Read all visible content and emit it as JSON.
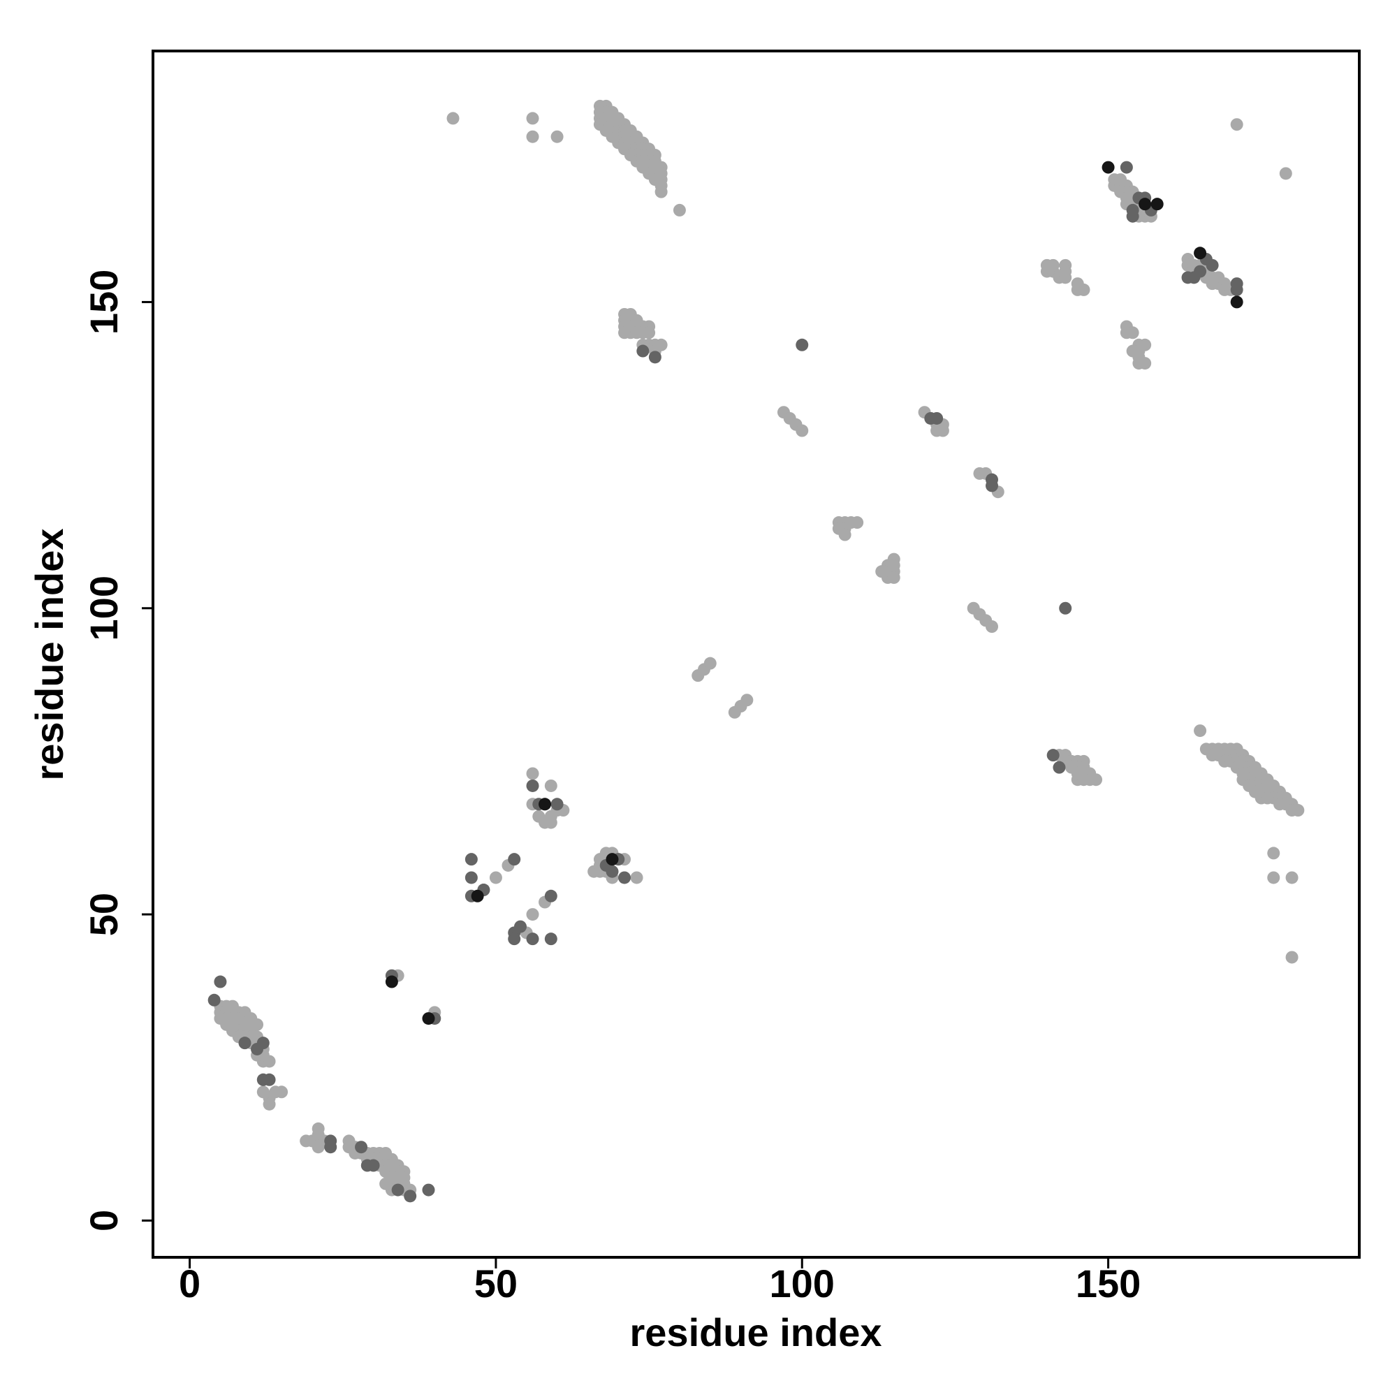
{
  "chart_data": {
    "type": "scatter",
    "xlabel": "residue index",
    "ylabel": "residue index",
    "xlim": [
      -6,
      191
    ],
    "ylim": [
      -6,
      191
    ],
    "xticks": [
      0,
      50,
      100,
      150
    ],
    "yticks": [
      0,
      50,
      100,
      150
    ],
    "series": [
      {
        "color": "#a9a9a9",
        "x": [
          5,
          6,
          7,
          8,
          9,
          10,
          11,
          5,
          6,
          7,
          8,
          9,
          10,
          11,
          5,
          6,
          7,
          8,
          9,
          10,
          11,
          12,
          6,
          7,
          8,
          9,
          10,
          11,
          12,
          13,
          12,
          13,
          14,
          15,
          13,
          12,
          19,
          20,
          21,
          21,
          22,
          21,
          26,
          26,
          27,
          27,
          28,
          29,
          30,
          31,
          32,
          33,
          34,
          35,
          35,
          29,
          30,
          31,
          32,
          33,
          34,
          31,
          32,
          33,
          34,
          35,
          32,
          33,
          34,
          33,
          32,
          36,
          35,
          34,
          40,
          48,
          50,
          52,
          55,
          56,
          58,
          56,
          56,
          57,
          58,
          59,
          59,
          60,
          61,
          58,
          59,
          66,
          67,
          67,
          68,
          69,
          68,
          69,
          71,
          73,
          67,
          83,
          84,
          85,
          89,
          90,
          91,
          97,
          98,
          99,
          100,
          106,
          107,
          108,
          109,
          107,
          107,
          106,
          114,
          115,
          114,
          115,
          115,
          114,
          115,
          113,
          128,
          129,
          130,
          131,
          120,
          121,
          122,
          123,
          122,
          123,
          129,
          130,
          132,
          67,
          67,
          67,
          67,
          68,
          68,
          68,
          68,
          68,
          69,
          69,
          69,
          69,
          69,
          70,
          70,
          70,
          70,
          70,
          71,
          71,
          71,
          71,
          71,
          72,
          72,
          72,
          72,
          72,
          73,
          73,
          73,
          73,
          73,
          74,
          74,
          74,
          74,
          74,
          75,
          75,
          75,
          75,
          75,
          76,
          76,
          76,
          76,
          76,
          77,
          77,
          77,
          77,
          77,
          80,
          43,
          56,
          56,
          60,
          171,
          179,
          71,
          71,
          71,
          71,
          72,
          72,
          72,
          72,
          73,
          73,
          73,
          74,
          74,
          75,
          75,
          74,
          75,
          76,
          76,
          77,
          151,
          151,
          152,
          152,
          152,
          153,
          153,
          153,
          154,
          154,
          155,
          155,
          156,
          156,
          155,
          157,
          154,
          153,
          163,
          163,
          164,
          165,
          165,
          166,
          167,
          168,
          168,
          169,
          169,
          170,
          164,
          166,
          167,
          140,
          140,
          141,
          142,
          143,
          143,
          143,
          145,
          146,
          145,
          141,
          153,
          153,
          154,
          155,
          155,
          156,
          155,
          156,
          154,
          155,
          142,
          143,
          143,
          144,
          145,
          146,
          145,
          146,
          146,
          147,
          147,
          148,
          145,
          146,
          144,
          165,
          166,
          167,
          168,
          169,
          170,
          171,
          167,
          168,
          169,
          170,
          171,
          172,
          169,
          170,
          171,
          172,
          173,
          171,
          172,
          173,
          174,
          175,
          172,
          173,
          174,
          174,
          175,
          176,
          175,
          176,
          177,
          177,
          178,
          176,
          177,
          178,
          179,
          179,
          180,
          180,
          181,
          178,
          172,
          173,
          174,
          175,
          176,
          177,
          177,
          180,
          180
        ],
        "y": [
          35,
          35,
          35,
          34,
          34,
          33,
          32,
          34,
          34,
          33,
          33,
          32,
          31,
          30,
          33,
          33,
          32,
          31,
          31,
          30,
          29,
          28,
          32,
          31,
          30,
          30,
          29,
          27,
          26,
          26,
          21,
          20,
          21,
          21,
          19,
          27,
          13,
          13,
          14,
          15,
          13,
          12,
          13,
          12,
          12,
          11,
          11,
          11,
          11,
          11,
          11,
          10,
          9,
          8,
          7,
          10,
          10,
          10,
          10,
          9,
          8,
          9,
          9,
          8,
          7,
          6,
          8,
          7,
          6,
          5,
          6,
          5,
          5,
          40,
          34,
          54,
          56,
          58,
          47,
          50,
          52,
          73,
          68,
          66,
          65,
          66,
          71,
          67,
          67,
          68,
          65,
          57,
          57,
          59,
          60,
          60,
          57,
          56,
          59,
          56,
          58,
          89,
          90,
          91,
          83,
          84,
          85,
          132,
          131,
          130,
          129,
          114,
          114,
          114,
          114,
          113,
          112,
          113,
          107,
          108,
          106,
          106,
          107,
          105,
          105,
          106,
          100,
          99,
          98,
          97,
          132,
          131,
          130,
          130,
          129,
          129,
          122,
          122,
          119,
          182,
          181,
          180,
          179,
          182,
          181,
          180,
          179,
          178,
          181,
          180,
          179,
          178,
          177,
          180,
          179,
          178,
          177,
          176,
          179,
          178,
          177,
          176,
          175,
          178,
          177,
          176,
          175,
          174,
          177,
          176,
          175,
          174,
          173,
          176,
          175,
          174,
          173,
          172,
          175,
          174,
          173,
          172,
          171,
          174,
          173,
          172,
          171,
          170,
          172,
          171,
          170,
          169,
          168,
          165,
          180,
          180,
          177,
          177,
          179,
          171,
          148,
          147,
          146,
          145,
          148,
          147,
          146,
          145,
          147,
          146,
          145,
          146,
          145,
          146,
          145,
          143,
          143,
          143,
          142,
          143,
          170,
          169,
          170,
          169,
          168,
          169,
          168,
          167,
          167,
          166,
          166,
          165,
          165,
          164,
          164,
          164,
          168,
          166,
          157,
          156,
          156,
          156,
          155,
          155,
          154,
          154,
          153,
          153,
          152,
          152,
          155,
          154,
          153,
          156,
          155,
          155,
          154,
          156,
          155,
          154,
          153,
          152,
          152,
          156,
          146,
          145,
          145,
          143,
          142,
          143,
          140,
          140,
          142,
          141,
          76,
          76,
          75,
          75,
          75,
          75,
          73,
          74,
          73,
          73,
          72,
          72,
          72,
          72,
          74,
          80,
          77,
          77,
          77,
          77,
          77,
          77,
          76,
          76,
          76,
          76,
          76,
          76,
          75,
          75,
          75,
          75,
          75,
          74,
          74,
          74,
          74,
          73,
          73,
          73,
          73,
          72,
          72,
          72,
          71,
          71,
          71,
          70,
          70,
          70,
          69,
          69,
          69,
          68,
          68,
          67,
          67,
          68,
          72,
          71,
          70,
          69,
          69,
          60,
          56,
          56,
          43
        ]
      },
      {
        "color": "#646464",
        "x": [
          5,
          4,
          9,
          12,
          11,
          12,
          13,
          23,
          23,
          28,
          29,
          30,
          36,
          34,
          39,
          33,
          40,
          46,
          46,
          46,
          48,
          53,
          53,
          53,
          54,
          56,
          59,
          59,
          56,
          57,
          60,
          68,
          69,
          71,
          70,
          100,
          143,
          121,
          122,
          131,
          131,
          74,
          76,
          153,
          154,
          154,
          155,
          156,
          156,
          157,
          163,
          164,
          166,
          167,
          171,
          171,
          165,
          141,
          142
        ],
        "y": [
          39,
          36,
          29,
          29,
          28,
          23,
          23,
          13,
          12,
          12,
          9,
          9,
          4,
          5,
          5,
          40,
          33,
          59,
          56,
          53,
          54,
          59,
          47,
          46,
          48,
          46,
          46,
          53,
          71,
          68,
          68,
          58,
          57,
          56,
          59,
          143,
          100,
          131,
          131,
          120,
          121,
          142,
          141,
          172,
          165,
          164,
          167,
          167,
          166,
          165,
          154,
          154,
          157,
          156,
          153,
          152,
          155,
          76,
          74
        ]
      },
      {
        "color": "#161616",
        "x": [
          33,
          39,
          47,
          58,
          69,
          150,
          156,
          158,
          165,
          171
        ],
        "y": [
          39,
          33,
          53,
          68,
          59,
          172,
          166,
          166,
          158,
          150
        ]
      }
    ]
  }
}
